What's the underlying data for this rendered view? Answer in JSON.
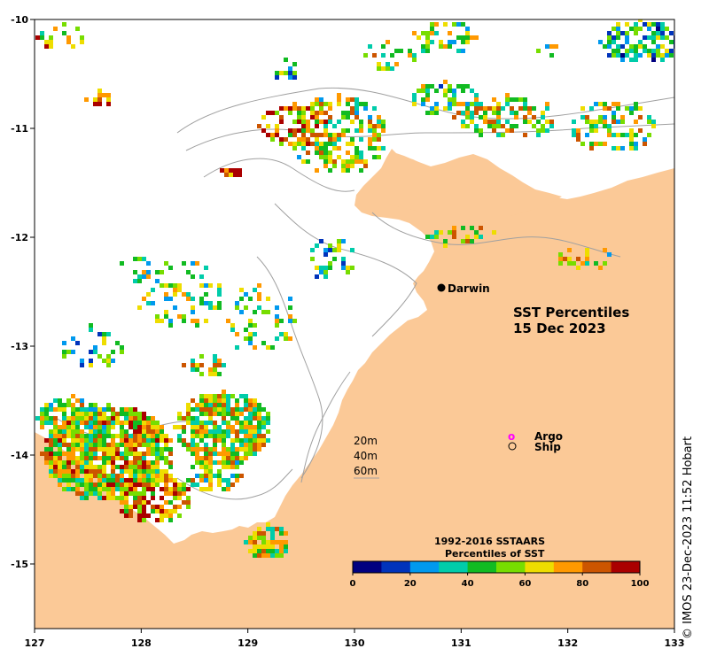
{
  "map": {
    "title_line1": "SST Percentiles",
    "title_line2": "15 Dec 2023",
    "lon_ticks": [
      "127",
      "128",
      "129",
      "130",
      "131",
      "132",
      "133"
    ],
    "lat_ticks": [
      "-10",
      "-11",
      "-12",
      "-13",
      "-14",
      "-15"
    ],
    "lon_range": [
      127,
      133
    ],
    "lat_range": [
      -15.6,
      -10
    ],
    "land_color": "#fbc997",
    "contour_color": "#a0a0a0",
    "city": {
      "name": "Darwin",
      "lon": 130.83,
      "lat": -12.46
    }
  },
  "legend": {
    "argo_symbol": "o",
    "argo_label": "Argo",
    "argo_color": "#ff00ff",
    "ship_label": "Ship"
  },
  "depth_labels": [
    "20m",
    "40m",
    "60m"
  ],
  "colorbar": {
    "title_line1": "1992-2016 SSTAARS",
    "title_line2": "Percentiles of SST",
    "ticks": [
      "0",
      "20",
      "40",
      "60",
      "80",
      "100"
    ],
    "colors": [
      "#000080",
      "#0033bb",
      "#0099ee",
      "#00ccaa",
      "#11bb22",
      "#77dd00",
      "#eedd00",
      "#ff9900",
      "#cc5500",
      "#aa0000"
    ]
  },
  "credit": "© IMOS 23-Dec-2023 11:52 Hobart"
}
